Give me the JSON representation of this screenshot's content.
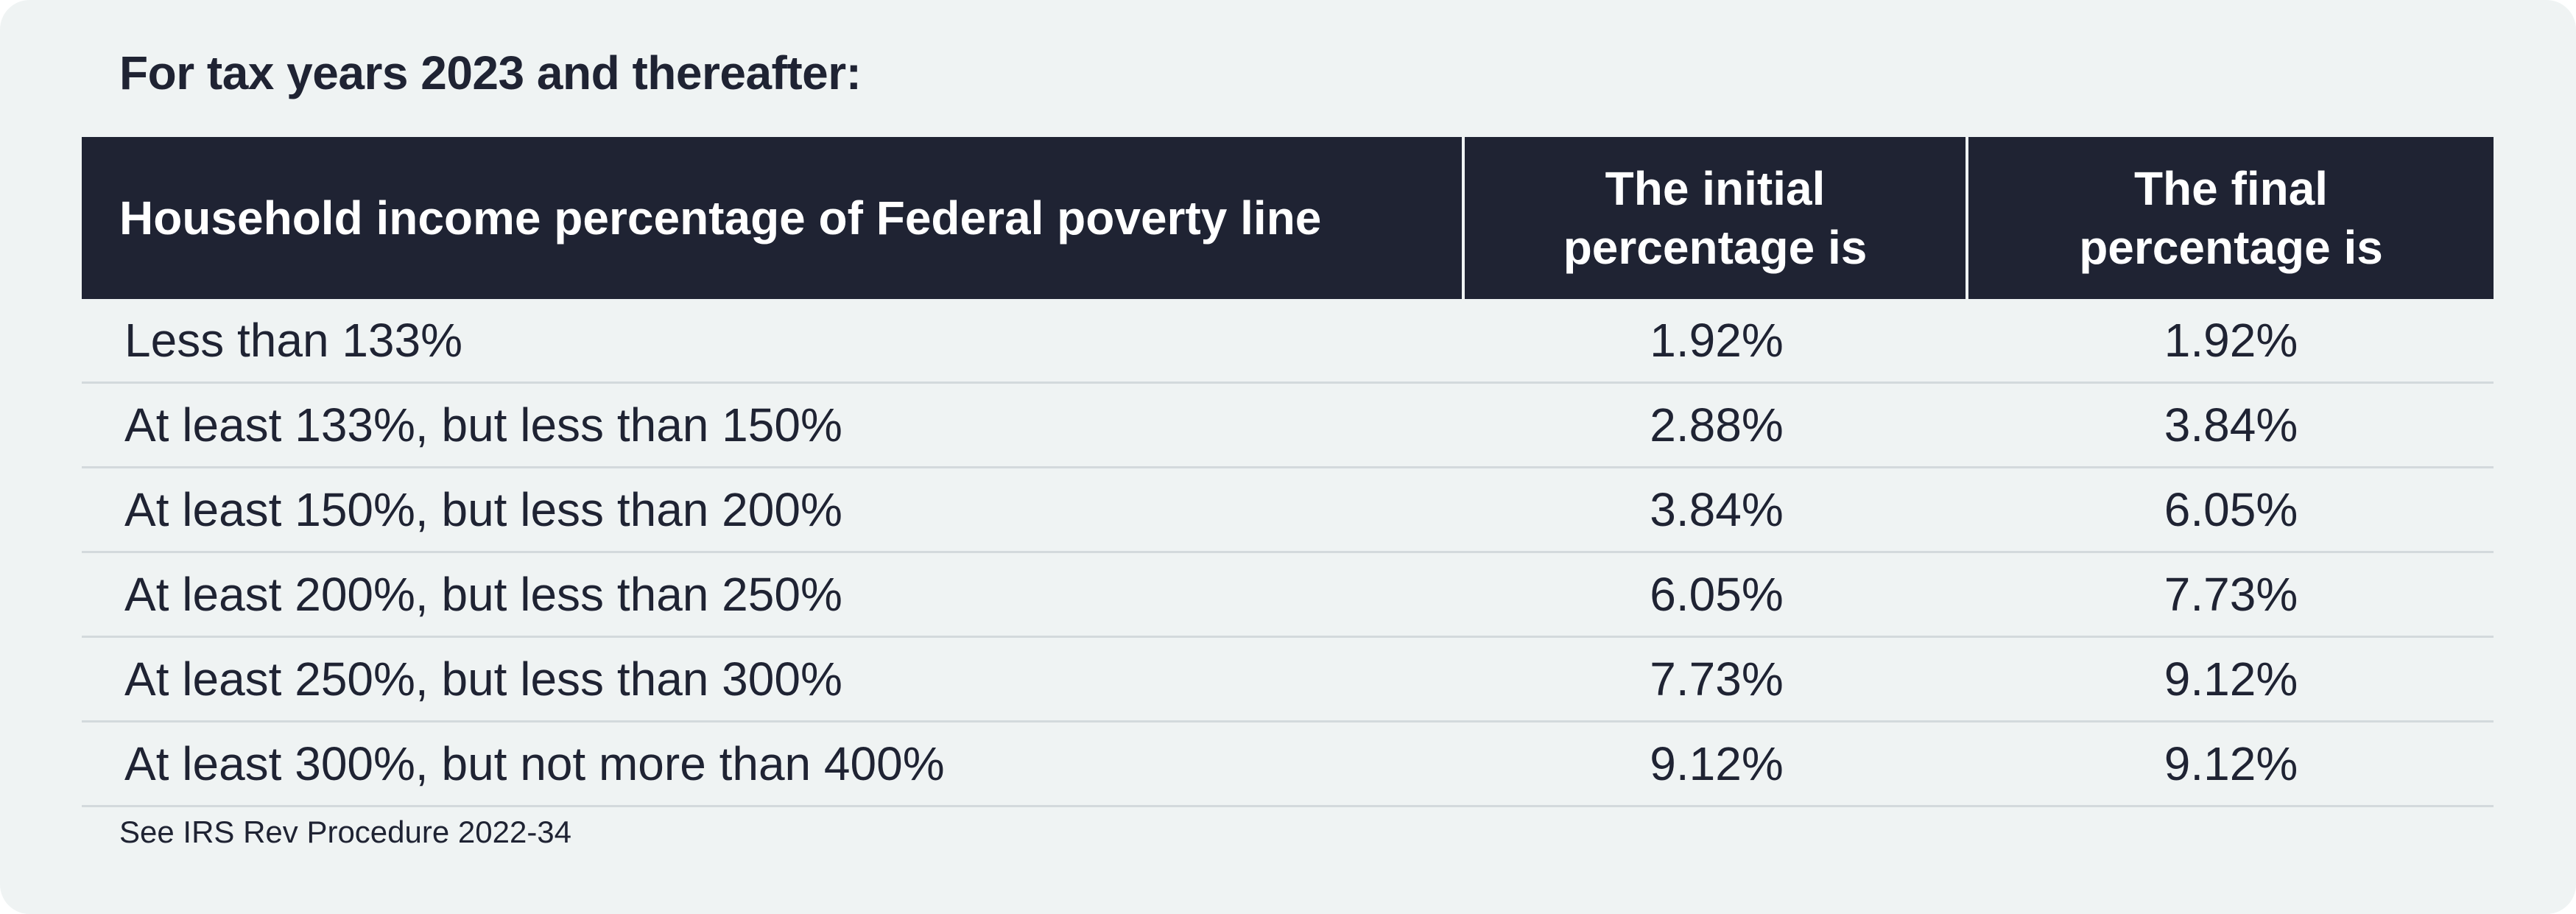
{
  "title": "For tax years 2023 and thereafter:",
  "table": {
    "headers": [
      "Household income percentage of Federal poverty line",
      "The initial percentage is",
      "The final percentage is"
    ],
    "rows": [
      [
        "Less than 133%",
        "1.92%",
        "1.92%"
      ],
      [
        "At least 133%, but less than 150%",
        "2.88%",
        "3.84%"
      ],
      [
        "At least 150%, but less than 200%",
        "3.84%",
        "6.05%"
      ],
      [
        "At least 200%, but less than 250%",
        "6.05%",
        "7.73%"
      ],
      [
        "At least 250%, but less than 300%",
        "7.73%",
        "9.12%"
      ],
      [
        "At least 300%, but not more than 400%",
        "9.12%",
        "9.12%"
      ]
    ]
  },
  "footnote": "See IRS Rev Procedure 2022-34",
  "colors": {
    "header_bg": "#1f2333",
    "card_bg": "#eff3f3",
    "text": "#1f2333",
    "row_divider": "#d3d9dc"
  }
}
